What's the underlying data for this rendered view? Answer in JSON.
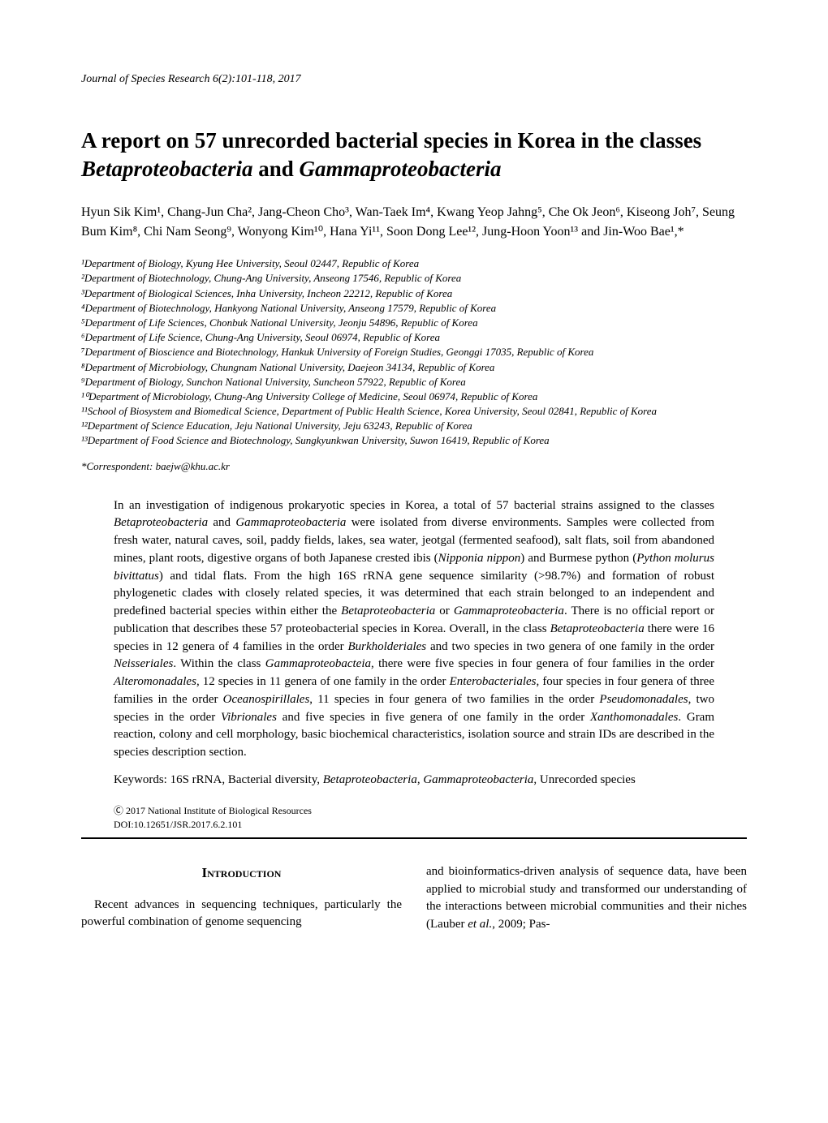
{
  "journal_header": "Journal of Species Research   6(2):101-118, 2017",
  "title_part1": "A report on 57 unrecorded bacterial species in Korea in the classes ",
  "title_italic1": "Betaproteobacteria",
  "title_part2": " and ",
  "title_italic2": "Gammaproteobacteria",
  "authors": "Hyun Sik Kim¹, Chang-Jun Cha², Jang-Cheon Cho³, Wan-Taek Im⁴, Kwang Yeop Jahng⁵, Che Ok Jeon⁶, Kiseong Joh⁷, Seung Bum Kim⁸, Chi Nam Seong⁹, Wonyong Kim¹⁰, Hana Yi¹¹, Soon Dong Lee¹², Jung-Hoon Yoon¹³ and Jin-Woo Bae¹,*",
  "affiliations": [
    "¹Department of Biology, Kyung Hee University, Seoul 02447, Republic of Korea",
    "²Department of Biotechnology, Chung-Ang University, Anseong 17546, Republic of Korea",
    "³Department of Biological Sciences, Inha University, Incheon 22212, Republic of Korea",
    "⁴Department of Biotechnology, Hankyong National University, Anseong 17579, Republic of Korea",
    "⁵Department of Life Sciences, Chonbuk National University, Jeonju 54896, Republic of Korea",
    "⁶Department of Life Science, Chung-Ang University, Seoul 06974, Republic of Korea",
    "⁷Department of Bioscience and Biotechnology, Hankuk University of Foreign Studies, Geonggi 17035, Republic of Korea",
    "⁸Department of Microbiology, Chungnam National University, Daejeon 34134, Republic of Korea",
    "⁹Department of Biology, Sunchon National University, Suncheon 57922, Republic of Korea",
    "¹⁰Department of Microbiology, Chung-Ang University College of Medicine, Seoul 06974, Republic of Korea",
    "¹¹School of Biosystem and Biomedical Science, Department of Public Health Science, Korea University, Seoul 02841, Republic of Korea",
    "¹²Department of Science Education, Jeju National University, Jeju 63243, Republic of Korea",
    "¹³Department of Food Science and Biotechnology, Sungkyunkwan University, Suwon 16419, Republic of Korea"
  ],
  "correspondent": "*Correspondent: baejw@khu.ac.kr",
  "abstract_html": "In an investigation of indigenous prokaryotic species in Korea, a total of 57 bacterial strains assigned to the classes <span class='italic'>Betaproteobacteria</span> and <span class='italic'>Gammaproteobacteria</span> were isolated from diverse environments. Samples were collected from fresh water, natural caves, soil, paddy fields, lakes, sea water, jeotgal (fermented seafood), salt flats, soil from abandoned mines, plant roots, digestive organs of both Japanese crested ibis (<span class='italic'>Nipponia nippon</span>) and Burmese python (<span class='italic'>Python molurus bivittatus</span>) and tidal flats. From the high 16S rRNA gene sequence similarity (&gt;98.7%) and formation of robust phylogenetic clades with closely related species, it was determined that each strain belonged to an independent and predefined bacterial species within either the <span class='italic'>Betaproteobacteria</span> or <span class='italic'>Gammaproteobacteria</span>. There is no official report or publication that describes these 57 proteobacterial species in Korea. Overall, in the class <span class='italic'>Betaproteobacteria</span> there were 16 species in 12 genera of 4 families in the order <span class='italic'>Burkholderiales</span> and two species in two genera of one family in the order <span class='italic'>Neisseriales</span>. Within the class <span class='italic'>Gammaproteobacteia</span>, there were five species in four genera of four families in the order <span class='italic'>Alteromonadales</span>, 12 species in 11 genera of one family in the order <span class='italic'>Enterobacteriales</span>, four species in four genera of three families in the order <span class='italic'>Oceanospirillales</span>, 11 species in four genera of two families in the order <span class='italic'>Pseudomonadales</span>, two species in the order <span class='italic'>Vibrionales</span> and five species in five genera of one family in the order <span class='italic'>Xanthomonadales</span>. Gram reaction, colony and cell morphology, basic biochemical characteristics, isolation source and strain IDs are described in the species description section.",
  "keywords_html": "Keywords: 16S rRNA, Bacterial diversity, <span class='italic'>Betaproteobacteria</span>, <span class='italic'>Gammaproteobacteria</span>, Unrecorded species",
  "copyright": "Ⓒ 2017 National Institute of Biological Resources",
  "doi": "DOI:10.12651/JSR.2017.6.2.101",
  "intro_heading": "Introduction",
  "intro_col1": "Recent advances in sequencing techniques, particularly the powerful combination of genome sequencing",
  "intro_col2_html": "and bioinformatics-driven analysis of sequence data, have been applied to microbial study and transformed our understanding of the interactions between microbial communities and their niches (Lauber <span class='italic'>et al.</span>, 2009; Pas-"
}
